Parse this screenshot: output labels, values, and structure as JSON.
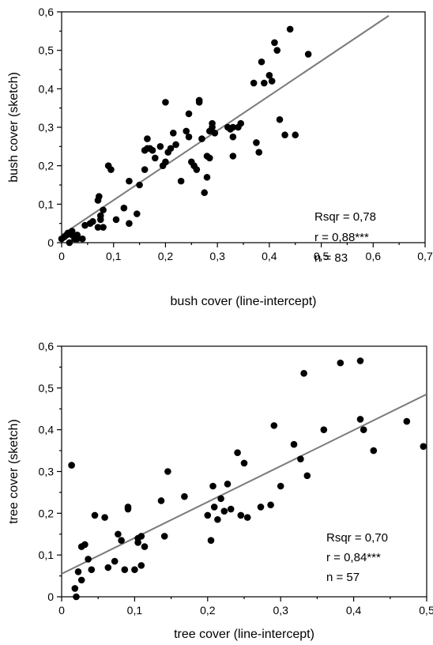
{
  "chart_data": [
    {
      "type": "scatter",
      "xlabel": "bush cover (line-intercept)",
      "ylabel": "bush cover (sketch)",
      "xlim": [
        0,
        0.7
      ],
      "ylim": [
        0,
        0.6
      ],
      "x_ticks": [
        "0",
        "0,1",
        "0,2",
        "0,3",
        "0,4",
        "0,5",
        "0,6",
        "0,7"
      ],
      "y_ticks": [
        "0",
        "0,1",
        "0,2",
        "0,3",
        "0,4",
        "0,5",
        "0,6"
      ],
      "annotations": [
        "Rsqr = 0,78",
        "r = 0,88***",
        "n = 83"
      ],
      "fit_line": {
        "x": [
          0,
          0.63
        ],
        "y": [
          0.02,
          0.59
        ]
      },
      "series": [
        {
          "x": [
            0.0,
            0.005,
            0.01,
            0.012,
            0.015,
            0.02,
            0.02,
            0.025,
            0.03,
            0.03,
            0.04,
            0.045,
            0.055,
            0.06,
            0.07,
            0.07,
            0.072,
            0.075,
            0.075,
            0.08,
            0.08,
            0.09,
            0.095,
            0.105,
            0.12,
            0.13,
            0.13,
            0.145,
            0.15,
            0.16,
            0.16,
            0.165,
            0.165,
            0.17,
            0.175,
            0.18,
            0.19,
            0.195,
            0.2,
            0.2,
            0.205,
            0.21,
            0.215,
            0.22,
            0.23,
            0.24,
            0.245,
            0.245,
            0.25,
            0.255,
            0.26,
            0.265,
            0.265,
            0.27,
            0.275,
            0.28,
            0.28,
            0.285,
            0.285,
            0.29,
            0.29,
            0.295,
            0.32,
            0.325,
            0.33,
            0.33,
            0.33,
            0.34,
            0.345,
            0.37,
            0.375,
            0.38,
            0.385,
            0.39,
            0.4,
            0.405,
            0.41,
            0.415,
            0.42,
            0.43,
            0.44,
            0.45,
            0.475
          ],
          "y": [
            0.01,
            0.015,
            0.02,
            0.025,
            0.0,
            0.02,
            0.03,
            0.01,
            0.01,
            0.02,
            0.01,
            0.045,
            0.05,
            0.055,
            0.04,
            0.11,
            0.12,
            0.06,
            0.07,
            0.04,
            0.085,
            0.2,
            0.19,
            0.06,
            0.09,
            0.05,
            0.16,
            0.075,
            0.15,
            0.19,
            0.24,
            0.245,
            0.27,
            0.245,
            0.24,
            0.22,
            0.25,
            0.2,
            0.21,
            0.365,
            0.235,
            0.245,
            0.285,
            0.255,
            0.16,
            0.29,
            0.275,
            0.335,
            0.21,
            0.2,
            0.19,
            0.365,
            0.37,
            0.27,
            0.13,
            0.17,
            0.225,
            0.22,
            0.29,
            0.31,
            0.3,
            0.285,
            0.3,
            0.295,
            0.275,
            0.3,
            0.225,
            0.3,
            0.31,
            0.415,
            0.26,
            0.235,
            0.47,
            0.415,
            0.435,
            0.42,
            0.52,
            0.5,
            0.32,
            0.28,
            0.555,
            0.28,
            0.49
          ]
        }
      ]
    },
    {
      "type": "scatter",
      "xlabel": "tree cover (line-intercept)",
      "ylabel": "tree cover (sketch)",
      "xlim": [
        0,
        0.55
      ],
      "ylim": [
        0,
        0.6
      ],
      "x_ticks": [
        "0",
        "0,1",
        "0,2",
        "0,3",
        "0,4",
        "0,5"
      ],
      "y_ticks": [
        "0",
        "0,1",
        "0,2",
        "0,3",
        "0,4",
        "0,5",
        "0,6"
      ],
      "annotations": [
        "Rsqr = 0,70",
        "r = 0,84***",
        "n = 57"
      ],
      "fit_line": {
        "x": [
          0,
          0.55
        ],
        "y": [
          0.055,
          0.485
        ]
      },
      "series": [
        {
          "x": [
            0.015,
            0.02,
            0.022,
            0.025,
            0.03,
            0.03,
            0.035,
            0.04,
            0.045,
            0.05,
            0.065,
            0.07,
            0.08,
            0.085,
            0.09,
            0.095,
            0.1,
            0.1,
            0.11,
            0.115,
            0.115,
            0.12,
            0.12,
            0.125,
            0.15,
            0.155,
            0.16,
            0.185,
            0.22,
            0.225,
            0.228,
            0.23,
            0.235,
            0.24,
            0.245,
            0.25,
            0.255,
            0.265,
            0.27,
            0.275,
            0.28,
            0.3,
            0.315,
            0.32,
            0.33,
            0.35,
            0.36,
            0.365,
            0.37,
            0.395,
            0.42,
            0.45,
            0.45,
            0.455,
            0.47,
            0.52,
            0.545
          ],
          "y": [
            0.315,
            0.02,
            0.0,
            0.06,
            0.12,
            0.04,
            0.125,
            0.09,
            0.065,
            0.195,
            0.19,
            0.07,
            0.085,
            0.15,
            0.135,
            0.065,
            0.21,
            0.215,
            0.065,
            0.13,
            0.14,
            0.145,
            0.075,
            0.12,
            0.23,
            0.145,
            0.3,
            0.24,
            0.195,
            0.135,
            0.265,
            0.215,
            0.185,
            0.235,
            0.205,
            0.27,
            0.21,
            0.345,
            0.195,
            0.32,
            0.19,
            0.215,
            0.22,
            0.41,
            0.265,
            0.365,
            0.33,
            0.535,
            0.29,
            0.4,
            0.56,
            0.565,
            0.425,
            0.4,
            0.35,
            0.42,
            0.36
          ]
        }
      ]
    }
  ]
}
